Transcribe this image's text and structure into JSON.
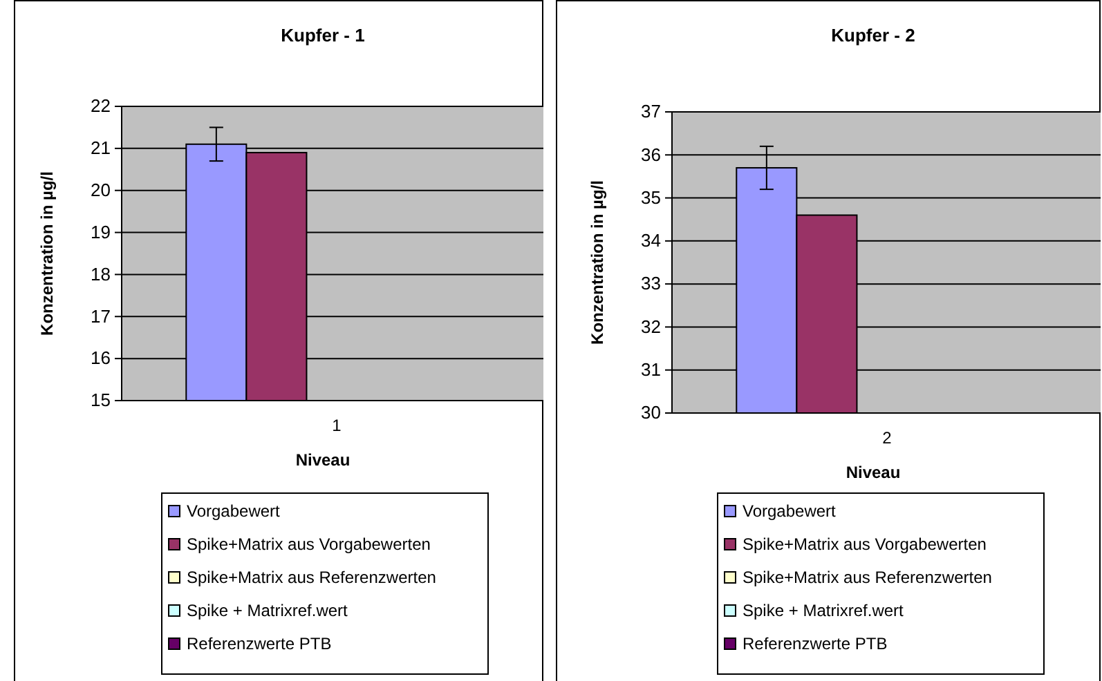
{
  "chart_data": [
    {
      "type": "bar",
      "title": "Kupfer - 1",
      "xlabel": "Niveau",
      "ylabel": "Konzentration in µg/l",
      "categories": [
        "1"
      ],
      "ylim": [
        15,
        22
      ],
      "yticks": [
        15,
        16,
        17,
        18,
        19,
        20,
        21,
        22
      ],
      "grid": "y",
      "legend": "bottom",
      "series": [
        {
          "name": "Vorgabewert",
          "color": "#9999ff",
          "values": [
            21.1
          ],
          "errors": [
            0.4
          ]
        },
        {
          "name": "Spike+Matrix aus Vorgabewerten",
          "color": "#993366",
          "values": [
            20.9
          ]
        },
        {
          "name": "Spike+Matrix aus Referenzwerten",
          "color": "#ffffcc",
          "values": [
            null
          ]
        },
        {
          "name": "Spike + Matrixref.wert",
          "color": "#ccffff",
          "values": [
            null
          ]
        },
        {
          "name": "Referenzwerte PTB",
          "color": "#660066",
          "values": [
            null
          ]
        }
      ]
    },
    {
      "type": "bar",
      "title": "Kupfer - 2",
      "xlabel": "Niveau",
      "ylabel": "Konzentration in µg/l",
      "categories": [
        "2"
      ],
      "ylim": [
        30,
        37
      ],
      "yticks": [
        30,
        31,
        32,
        33,
        34,
        35,
        36,
        37
      ],
      "grid": "y",
      "legend": "bottom",
      "series": [
        {
          "name": "Vorgabewert",
          "color": "#9999ff",
          "values": [
            35.7
          ],
          "errors": [
            0.5
          ]
        },
        {
          "name": "Spike+Matrix aus Vorgabewerten",
          "color": "#993366",
          "values": [
            34.6
          ]
        },
        {
          "name": "Spike+Matrix aus Referenzwerten",
          "color": "#ffffcc",
          "values": [
            null
          ]
        },
        {
          "name": "Spike + Matrixref.wert",
          "color": "#ccffff",
          "values": [
            null
          ]
        },
        {
          "name": "Referenzwerte PTB",
          "color": "#660066",
          "values": [
            null
          ]
        }
      ]
    }
  ]
}
